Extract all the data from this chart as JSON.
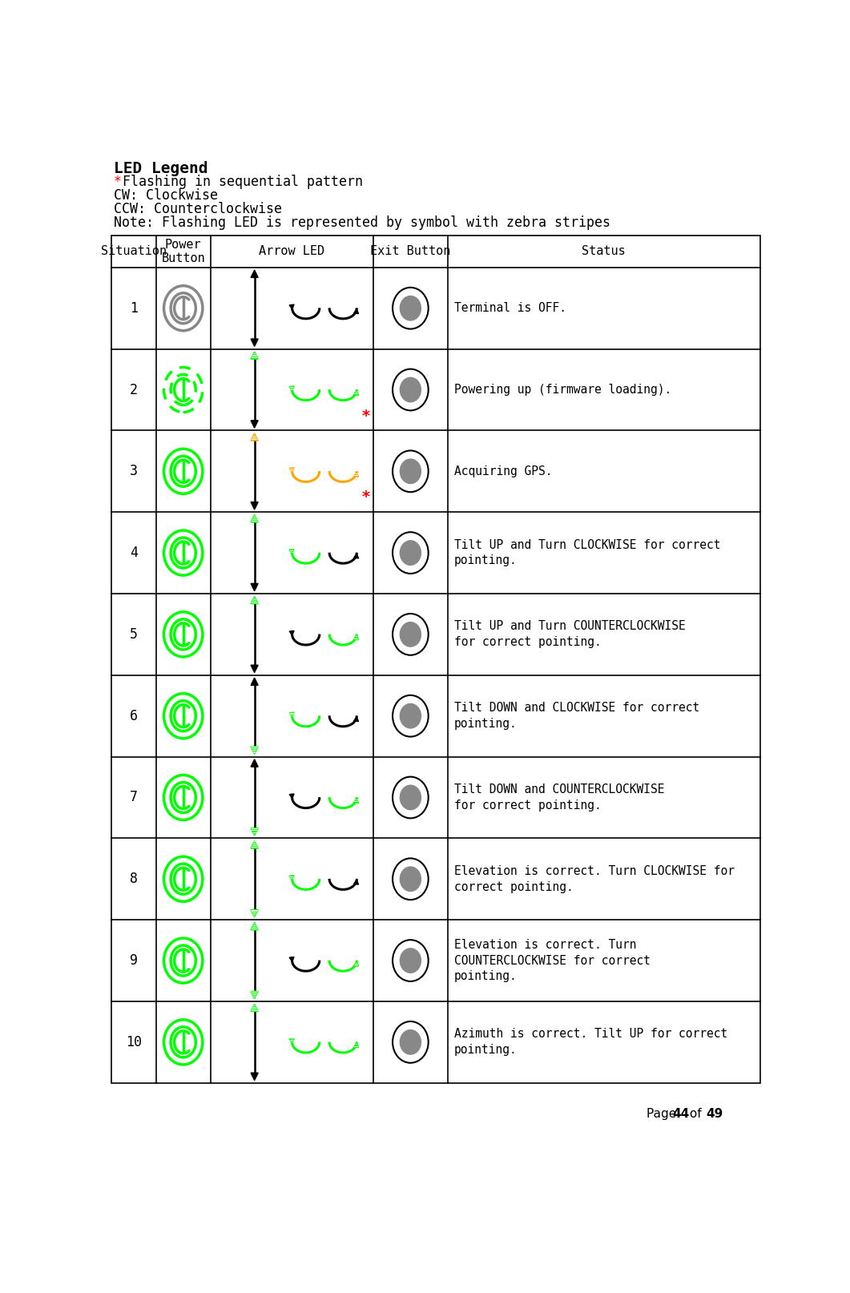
{
  "title": "LED Legend",
  "legend_lines": [
    [
      "* ",
      "red",
      "Flashing in sequential pattern",
      "black"
    ],
    [
      "CW: Clockwise",
      "black",
      "",
      ""
    ],
    [
      "CCW: Counterclockwise",
      "black",
      "",
      ""
    ],
    [
      "Note: Flashing LED is represented by symbol with zebra stripes",
      "black",
      "",
      ""
    ]
  ],
  "col_headers": [
    "Situation",
    "Power\nButton",
    "Arrow LED",
    "Exit Button",
    "Status"
  ],
  "page_footer_pre": "Page ",
  "page_num": "44",
  "page_of": " of ",
  "page_total": "49",
  "rows": [
    {
      "num": "1",
      "status": "Terminal is OFF.",
      "power_color": "#888888",
      "power_ring_color": "#888888",
      "power_dashed": false,
      "up_arrow_color": "black",
      "down_arrow_color": "black",
      "up_arr_striped": false,
      "down_arr_striped": false,
      "left_arc_color": "black",
      "right_arc_color": "black",
      "left_tip_color": "black",
      "right_tip_color": "black",
      "left_tip_striped": false,
      "right_tip_striped": false,
      "has_star": false
    },
    {
      "num": "2",
      "status": "Powering up (firmware loading).",
      "power_color": "#00ff00",
      "power_ring_color": "#00ff00",
      "power_dashed": true,
      "up_arrow_color": "#00ff00",
      "down_arrow_color": "black",
      "up_arr_striped": true,
      "down_arr_striped": false,
      "left_arc_color": "#00ff00",
      "right_arc_color": "#00ff00",
      "left_tip_color": "#00ff00",
      "right_tip_color": "#00ff00",
      "left_tip_striped": true,
      "right_tip_striped": true,
      "has_star": true
    },
    {
      "num": "3",
      "status": "Acquiring GPS.",
      "power_color": "#00ff00",
      "power_ring_color": "#00ff00",
      "power_dashed": false,
      "up_arrow_color": "#ffa500",
      "down_arrow_color": "black",
      "up_arr_striped": true,
      "down_arr_striped": false,
      "left_arc_color": "#ffa500",
      "right_arc_color": "#ffa500",
      "left_tip_color": "#ffa500",
      "right_tip_color": "#ffa500",
      "left_tip_striped": true,
      "right_tip_striped": true,
      "has_star": true
    },
    {
      "num": "4",
      "status": "Tilt UP and Turn CLOCKWISE for correct\npointing.",
      "power_color": "#00ff00",
      "power_ring_color": "#00ff00",
      "power_dashed": false,
      "up_arrow_color": "#00ff00",
      "down_arrow_color": "black",
      "up_arr_striped": true,
      "down_arr_striped": false,
      "left_arc_color": "#00ff00",
      "right_arc_color": "black",
      "left_tip_color": "#00ff00",
      "right_tip_color": "black",
      "left_tip_striped": true,
      "right_tip_striped": false,
      "has_star": false
    },
    {
      "num": "5",
      "status": "Tilt UP and Turn COUNTERCLOCKWISE\nfor correct pointing.",
      "power_color": "#00ff00",
      "power_ring_color": "#00ff00",
      "power_dashed": false,
      "up_arrow_color": "#00ff00",
      "down_arrow_color": "black",
      "up_arr_striped": true,
      "down_arr_striped": false,
      "left_arc_color": "black",
      "right_arc_color": "#00ff00",
      "left_tip_color": "black",
      "right_tip_color": "#00ff00",
      "left_tip_striped": false,
      "right_tip_striped": true,
      "has_star": false
    },
    {
      "num": "6",
      "status": "Tilt DOWN and CLOCKWISE for correct\npointing.",
      "power_color": "#00ff00",
      "power_ring_color": "#00ff00",
      "power_dashed": false,
      "up_arrow_color": "black",
      "down_arrow_color": "#00ff00",
      "up_arr_striped": false,
      "down_arr_striped": true,
      "left_arc_color": "#00ff00",
      "right_arc_color": "black",
      "left_tip_color": "#00ff00",
      "right_tip_color": "black",
      "left_tip_striped": true,
      "right_tip_striped": false,
      "has_star": false
    },
    {
      "num": "7",
      "status": "Tilt DOWN and COUNTERCLOCKWISE\nfor correct pointing.",
      "power_color": "#00ff00",
      "power_ring_color": "#00ff00",
      "power_dashed": false,
      "up_arrow_color": "black",
      "down_arrow_color": "#00ff00",
      "up_arr_striped": false,
      "down_arr_striped": true,
      "left_arc_color": "black",
      "right_arc_color": "#00ff00",
      "left_tip_color": "black",
      "right_tip_color": "#00ff00",
      "left_tip_striped": false,
      "right_tip_striped": true,
      "has_star": false
    },
    {
      "num": "8",
      "status": "Elevation is correct. Turn CLOCKWISE for\ncorrect pointing.",
      "power_color": "#00ff00",
      "power_ring_color": "#00ff00",
      "power_dashed": false,
      "up_arrow_color": "#00ff00",
      "down_arrow_color": "#00ff00",
      "up_arr_striped": true,
      "down_arr_striped": true,
      "left_arc_color": "#00ff00",
      "right_arc_color": "black",
      "left_tip_color": "#00ff00",
      "right_tip_color": "black",
      "left_tip_striped": true,
      "right_tip_striped": false,
      "has_star": false
    },
    {
      "num": "9",
      "status": "Elevation is correct. Turn\nCOUNTERCLOCKWISE for correct\npointing.",
      "power_color": "#00ff00",
      "power_ring_color": "#00ff00",
      "power_dashed": false,
      "up_arrow_color": "#00ff00",
      "down_arrow_color": "#00ff00",
      "up_arr_striped": true,
      "down_arr_striped": true,
      "left_arc_color": "black",
      "right_arc_color": "#00ff00",
      "left_tip_color": "black",
      "right_tip_color": "#00ff00",
      "left_tip_striped": false,
      "right_tip_striped": true,
      "has_star": false
    },
    {
      "num": "10",
      "status": "Azimuth is correct. Tilt UP for correct\npointing.",
      "power_color": "#00ff00",
      "power_ring_color": "#00ff00",
      "power_dashed": false,
      "up_arrow_color": "#00ff00",
      "down_arrow_color": "black",
      "up_arr_striped": true,
      "down_arr_striped": false,
      "left_arc_color": "#00ff00",
      "right_arc_color": "#00ff00",
      "left_tip_color": "#00ff00",
      "right_tip_color": "#00ff00",
      "left_tip_striped": true,
      "right_tip_striped": true,
      "has_star": false
    }
  ]
}
